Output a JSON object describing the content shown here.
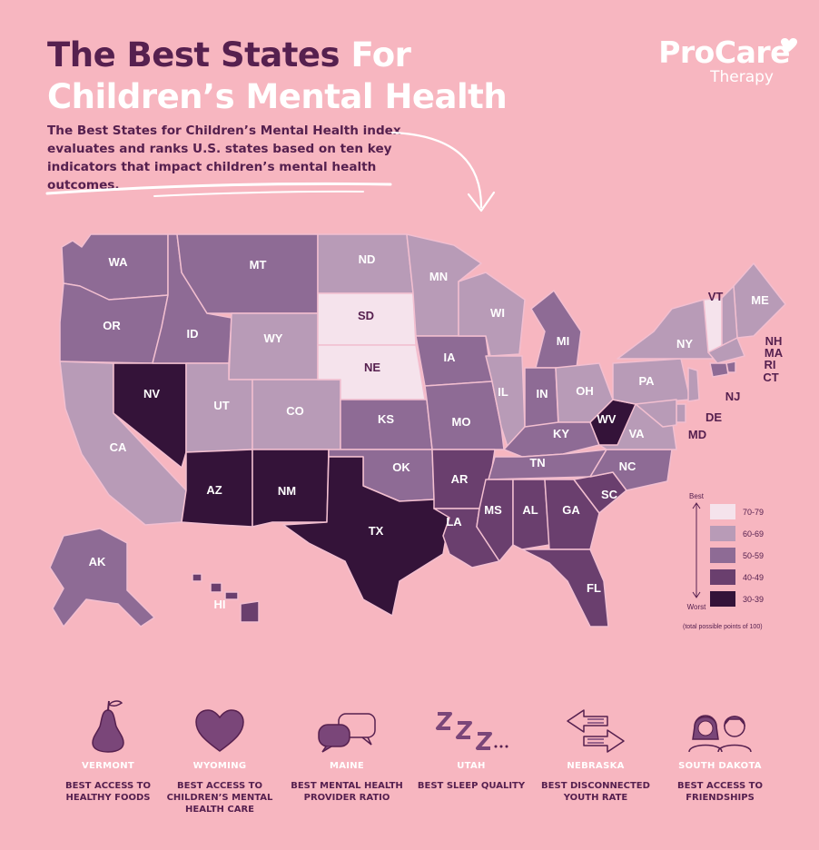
{
  "title": {
    "part1": "The Best States",
    "part2": "For",
    "line2": "Children’s Mental Health"
  },
  "intro": "The Best States for Children’s Mental Health index evaluates and ranks U.S. states based on ten key indicators that impact children’s mental health outcomes.",
  "logo": {
    "brand": "ProCare",
    "sub": "Therapy"
  },
  "colors": {
    "background": "#f7b6c0",
    "t70": "#f5e3ec",
    "t60": "#b89bb7",
    "t50": "#8e6b95",
    "t40": "#6a3f6e",
    "t30": "#341339"
  },
  "legend": {
    "best": "Best",
    "worst": "Worst",
    "note": "(total possible points of 100)",
    "ranges": [
      {
        "label": "70-79",
        "color": "#f5e3ec"
      },
      {
        "label": "60-69",
        "color": "#b89bb7"
      },
      {
        "label": "50-59",
        "color": "#8e6b95"
      },
      {
        "label": "40-49",
        "color": "#6a3f6e"
      },
      {
        "label": "30-39",
        "color": "#341339"
      }
    ]
  },
  "states": {
    "WA": "50-59",
    "OR": "50-59",
    "CA": "60-69",
    "NV": "30-39",
    "ID": "50-59",
    "MT": "50-59",
    "WY": "60-69",
    "UT": "60-69",
    "AZ": "30-39",
    "CO": "60-69",
    "NM": "30-39",
    "ND": "60-69",
    "SD": "70-79",
    "NE": "70-79",
    "KS": "50-59",
    "OK": "50-59",
    "TX": "30-39",
    "MN": "60-69",
    "IA": "50-59",
    "MO": "50-59",
    "AR": "40-49",
    "LA": "40-49",
    "WI": "60-69",
    "IL": "60-69",
    "MI": "50-59",
    "IN": "50-59",
    "OH": "60-69",
    "KY": "50-59",
    "TN": "50-59",
    "MS": "40-49",
    "AL": "40-49",
    "GA": "40-49",
    "FL": "40-49",
    "SC": "40-49",
    "NC": "50-59",
    "VA": "60-69",
    "WV": "30-39",
    "PA": "60-69",
    "NY": "60-69",
    "VT": "70-79",
    "ME": "60-69",
    "NH": "60-69",
    "MA": "60-69",
    "RI": "50-59",
    "CT": "50-59",
    "NJ": "60-69",
    "DE": "60-69",
    "MD": "60-69",
    "AK": "50-59",
    "HI": "40-49"
  },
  "categories": [
    {
      "state": "VERMONT",
      "desc": "BEST ACCESS TO HEALTHY FOODS",
      "icon": "pear-icon"
    },
    {
      "state": "WYOMING",
      "desc": "BEST ACCESS TO CHILDREN’S MENTAL HEALTH CARE",
      "icon": "heart-icon"
    },
    {
      "state": "MAINE",
      "desc": "BEST MENTAL HEALTH PROVIDER RATIO",
      "icon": "chat-bubbles-icon"
    },
    {
      "state": "UTAH",
      "desc": "BEST SLEEP QUALITY",
      "icon": "sleep-icon"
    },
    {
      "state": "NEBRASKA",
      "desc": "BEST DISCONNECTED YOUTH RATE",
      "icon": "arrows-icon"
    },
    {
      "state": "SOUTH DAKOTA",
      "desc": "BEST ACCESS TO FRIENDSHIPS",
      "icon": "friends-icon"
    }
  ]
}
